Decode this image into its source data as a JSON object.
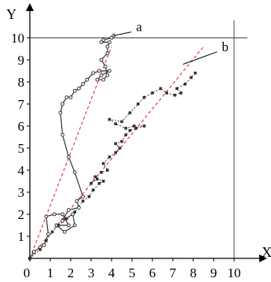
{
  "chart_data": {
    "type": "scatter",
    "xlabel": "X",
    "ylabel": "Y",
    "xlim": [
      0,
      10.5
    ],
    "ylim": [
      0,
      10.5
    ],
    "x_ticks": [
      "0",
      "1",
      "2",
      "3",
      "4",
      "5",
      "6",
      "7",
      "8",
      "9",
      "10"
    ],
    "y_ticks": [
      "1",
      "2",
      "3",
      "4",
      "5",
      "6",
      "7",
      "8",
      "9",
      "10"
    ],
    "reference_lines": [
      {
        "axis": "x",
        "value": 10
      },
      {
        "axis": "y",
        "value": 10
      }
    ],
    "series": [
      {
        "name": "a",
        "color": "#333333",
        "marker": "circle",
        "line": "solid",
        "points": [
          [
            0.0,
            0.0
          ],
          [
            0.2,
            0.3
          ],
          [
            0.5,
            0.5
          ],
          [
            0.7,
            0.6
          ],
          [
            0.9,
            1.1
          ],
          [
            0.8,
            1.9
          ],
          [
            1.2,
            2.0
          ],
          [
            1.6,
            2.0
          ],
          [
            1.9,
            1.5
          ],
          [
            1.3,
            1.5
          ],
          [
            1.7,
            1.2
          ],
          [
            2.2,
            1.5
          ],
          [
            2.1,
            2.0
          ],
          [
            1.6,
            1.7
          ],
          [
            1.9,
            2.2
          ],
          [
            2.4,
            2.3
          ],
          [
            2.3,
            2.6
          ],
          [
            2.6,
            2.8
          ],
          [
            2.2,
            3.9
          ],
          [
            1.9,
            4.6
          ],
          [
            1.6,
            5.6
          ],
          [
            1.5,
            6.6
          ],
          [
            1.6,
            7.0
          ],
          [
            1.8,
            7.3
          ],
          [
            2.0,
            7.3
          ],
          [
            2.2,
            7.6
          ],
          [
            2.4,
            7.7
          ],
          [
            2.6,
            7.9
          ],
          [
            2.8,
            8.1
          ],
          [
            3.1,
            8.4
          ],
          [
            3.4,
            8.5
          ],
          [
            3.9,
            8.5
          ],
          [
            3.5,
            8.3
          ],
          [
            3.3,
            8.1
          ],
          [
            3.6,
            8.1
          ],
          [
            3.8,
            8.3
          ],
          [
            3.7,
            8.7
          ],
          [
            3.5,
            9.0
          ],
          [
            3.8,
            9.3
          ],
          [
            3.8,
            9.6
          ],
          [
            3.9,
            9.8
          ],
          [
            3.5,
            9.8
          ],
          [
            3.6,
            9.9
          ],
          [
            4.0,
            10.0
          ],
          [
            4.1,
            10.1
          ]
        ]
      },
      {
        "name": "b",
        "color": "#333333",
        "marker": "square",
        "line": "dotted",
        "points": [
          [
            0.0,
            0.0
          ],
          [
            0.5,
            0.4
          ],
          [
            0.8,
            0.8
          ],
          [
            1.1,
            1.2
          ],
          [
            1.4,
            1.5
          ],
          [
            1.8,
            1.8
          ],
          [
            2.2,
            2.1
          ],
          [
            2.6,
            2.6
          ],
          [
            2.9,
            2.8
          ],
          [
            3.1,
            3.1
          ],
          [
            3.4,
            3.4
          ],
          [
            3.6,
            3.5
          ],
          [
            3.3,
            3.6
          ],
          [
            3.0,
            3.4
          ],
          [
            3.2,
            3.7
          ],
          [
            3.5,
            3.9
          ],
          [
            3.8,
            4.0
          ],
          [
            3.6,
            4.3
          ],
          [
            3.9,
            4.6
          ],
          [
            4.2,
            4.8
          ],
          [
            4.4,
            5.0
          ],
          [
            4.2,
            5.2
          ],
          [
            4.5,
            5.3
          ],
          [
            4.7,
            5.6
          ],
          [
            4.9,
            5.8
          ],
          [
            5.2,
            5.9
          ],
          [
            5.6,
            6.0
          ],
          [
            5.1,
            6.0
          ],
          [
            4.7,
            5.9
          ],
          [
            4.2,
            6.1
          ],
          [
            3.9,
            6.3
          ],
          [
            4.5,
            6.2
          ],
          [
            4.9,
            6.6
          ],
          [
            5.3,
            7.0
          ],
          [
            5.6,
            7.3
          ],
          [
            6.0,
            7.5
          ],
          [
            6.4,
            7.7
          ],
          [
            6.7,
            7.5
          ],
          [
            7.1,
            7.4
          ],
          [
            7.4,
            7.5
          ],
          [
            7.2,
            7.7
          ],
          [
            7.6,
            7.9
          ],
          [
            7.9,
            8.2
          ],
          [
            8.1,
            8.4
          ]
        ]
      },
      {
        "name": "",
        "color": "#e03030",
        "line": "dashed",
        "points": [
          [
            0.0,
            0.0
          ],
          [
            4.0,
            9.6
          ]
        ]
      },
      {
        "name": "",
        "color": "#e03030",
        "line": "dashed",
        "points": [
          [
            0.0,
            0.0
          ],
          [
            8.5,
            9.6
          ]
        ]
      }
    ],
    "annotations": [
      {
        "text": "a",
        "target_series": 0,
        "target": [
          4.1,
          10.1
        ],
        "label_at": [
          5.2,
          10.3
        ]
      },
      {
        "text": "b",
        "target_series": 1,
        "target": [
          7.5,
          8.8
        ],
        "label_at": [
          9.4,
          9.4
        ]
      }
    ],
    "grid": false,
    "legend": "none"
  }
}
